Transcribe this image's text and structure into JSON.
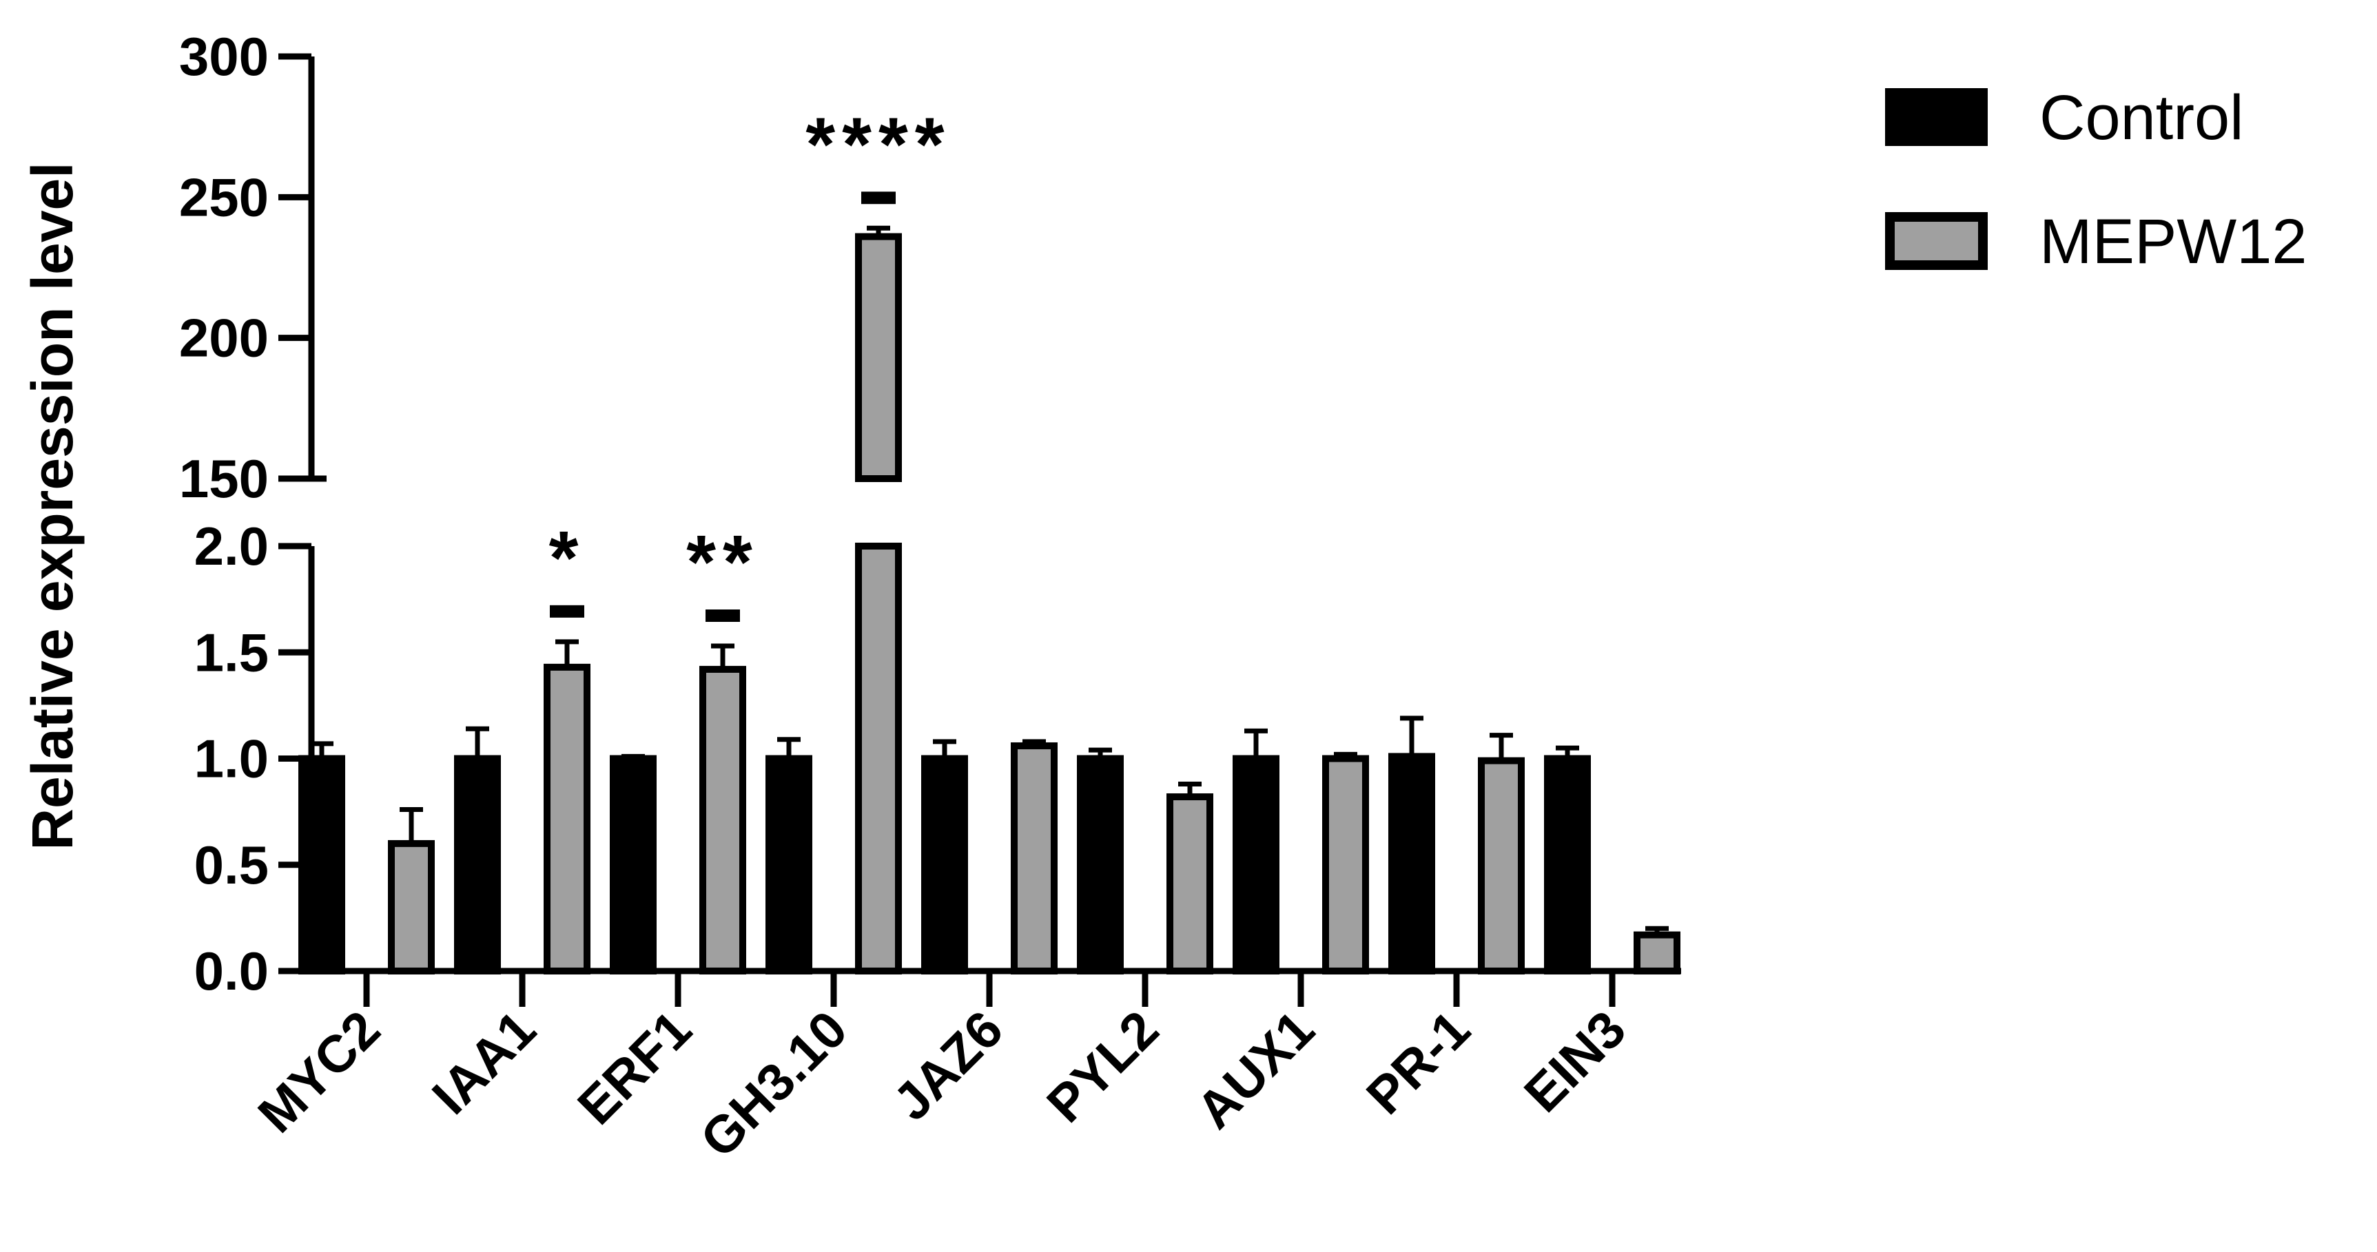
{
  "chart_data": {
    "type": "bar",
    "ylabel": "Relative expression level",
    "xlabel": "",
    "categories": [
      "MYC2",
      "IAA1",
      "ERF1",
      "GH3.10",
      "JAZ6",
      "PYL2",
      "AUX1",
      "PR-1",
      "EIN3"
    ],
    "series": [
      {
        "name": "Control",
        "color": "#000000",
        "values": [
          1.0,
          1.0,
          1.0,
          1.0,
          1.0,
          1.0,
          1.0,
          1.01,
          1.0
        ],
        "errors": [
          0.07,
          0.14,
          0.01,
          0.09,
          0.08,
          0.04,
          0.13,
          0.18,
          0.05
        ]
      },
      {
        "name": "MEPW12",
        "color": "#a0a0a0",
        "values": [
          0.6,
          1.43,
          1.42,
          236,
          1.06,
          0.82,
          1.0,
          0.99,
          0.17
        ],
        "errors": [
          0.16,
          0.12,
          0.11,
          3,
          0.02,
          0.06,
          0.02,
          0.12,
          0.03
        ]
      }
    ],
    "significance": [
      {
        "category": "IAA1",
        "label": "*"
      },
      {
        "category": "ERF1",
        "label": "**"
      },
      {
        "category": "GH3.10",
        "label": "****"
      }
    ],
    "y_axis_broken": true,
    "lower_segment": {
      "range": [
        0,
        2.0
      ],
      "ticks": [
        "0.0",
        "0.5",
        "1.0",
        "1.5",
        "2.0"
      ]
    },
    "upper_segment": {
      "range": [
        150,
        300
      ],
      "ticks": [
        "150",
        "200",
        "250",
        "300"
      ]
    },
    "legend_position": "top-right",
    "grid": false
  }
}
